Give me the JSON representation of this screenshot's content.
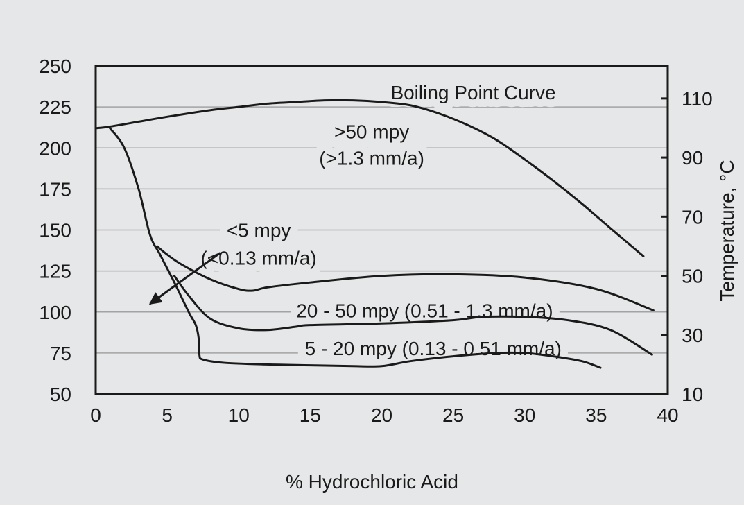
{
  "chart_data": {
    "type": "line",
    "xlabel": "% Hydrochloric Acid",
    "y2label": "Temperature, °C",
    "xlim": [
      0,
      40
    ],
    "ylim": [
      50,
      250
    ],
    "y2lim": [
      10,
      121
    ],
    "x_ticks": [
      "0",
      "5",
      "10",
      "15",
      "20",
      "25",
      "30",
      "35",
      "40"
    ],
    "y_ticks": [
      "50",
      "75",
      "100",
      "125",
      "150",
      "175",
      "200",
      "225",
      "250"
    ],
    "y2_ticks": [
      "10",
      "30",
      "50",
      "70",
      "90",
      "110"
    ],
    "grid": true,
    "series": [
      {
        "name": "Boiling Point Curve",
        "x": [
          0,
          1,
          3,
          5,
          8,
          10,
          12,
          14,
          16,
          18,
          20,
          22,
          24,
          26,
          28,
          30,
          32,
          34,
          36,
          38.3
        ],
        "y": [
          212,
          213,
          216,
          219,
          223,
          225,
          227,
          228,
          229,
          229,
          228,
          226,
          221,
          214,
          205,
          193,
          180,
          166,
          151,
          134
        ]
      },
      {
        "name": "",
        "x": [
          1,
          2,
          3,
          3.8,
          4.5,
          5.5,
          6.5,
          7,
          7.2,
          7.25,
          7.5,
          9,
          12,
          15,
          18,
          20,
          22,
          25,
          28,
          30,
          32,
          34,
          35.3
        ],
        "y": [
          212,
          200,
          175,
          147,
          135,
          118,
          100,
          92,
          84,
          74,
          71,
          69,
          68,
          67.5,
          67,
          67,
          70,
          73,
          75,
          75,
          73,
          70,
          66
        ]
      },
      {
        "name": "",
        "x": [
          5.5,
          6.5,
          8,
          10,
          12,
          14,
          15,
          20,
          25,
          27,
          30,
          33,
          36,
          38.9
        ],
        "y": [
          122,
          110,
          96,
          90,
          89,
          91,
          92,
          93,
          95,
          97,
          97,
          95,
          89,
          74
        ]
      },
      {
        "name": "",
        "x": [
          4.3,
          5,
          6,
          8,
          10,
          11,
          12,
          15,
          20,
          25,
          30,
          35,
          39
        ],
        "y": [
          140,
          135,
          129,
          120,
          114,
          113,
          115,
          118,
          122,
          123,
          121,
          114,
          101
        ]
      }
    ],
    "annotations": [
      {
        "text": "Boiling Point Curve",
        "x": 26.4,
        "y": 234
      },
      {
        "text": ">50 mpy",
        "x": 19.3,
        "y": 210
      },
      {
        "text": "(>1.3 mm/a)",
        "x": 19.3,
        "y": 194
      },
      {
        "text": "<5 mpy",
        "x": 11.4,
        "y": 150
      },
      {
        "text": "(<0.13 mm/a)",
        "x": 11.4,
        "y": 133
      },
      {
        "text": "20 - 50 mpy (0.51 - 1.3 mm/a)",
        "x": 23.0,
        "y": 101
      },
      {
        "text": "5 - 20 mpy (0.13 - 0.51 mm/a)",
        "x": 23.6,
        "y": 78
      }
    ],
    "arrow": {
      "from": [
        8.7,
        136
      ],
      "to": [
        3.8,
        105
      ]
    }
  }
}
